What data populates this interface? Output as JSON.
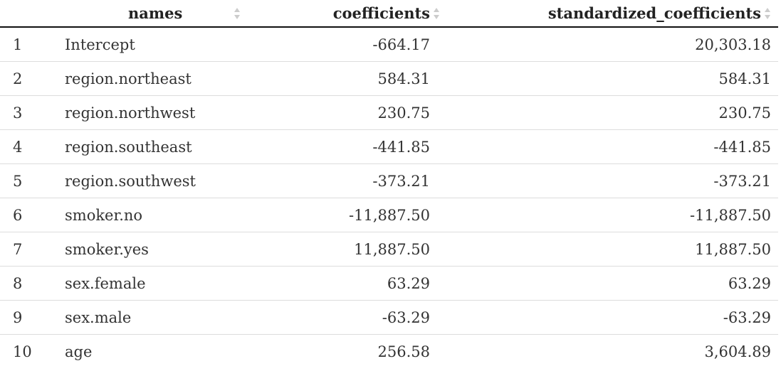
{
  "table": {
    "columns": [
      {
        "key": "index",
        "label": ""
      },
      {
        "key": "names",
        "label": "names"
      },
      {
        "key": "coefficients",
        "label": "coefficients"
      },
      {
        "key": "standardized_coefficients",
        "label": "standardized_coefficients"
      }
    ],
    "rows": [
      {
        "index": "1",
        "names": "Intercept",
        "coefficients": "-664.17",
        "standardized_coefficients": "20,303.18"
      },
      {
        "index": "2",
        "names": "region.northeast",
        "coefficients": "584.31",
        "standardized_coefficients": "584.31"
      },
      {
        "index": "3",
        "names": "region.northwest",
        "coefficients": "230.75",
        "standardized_coefficients": "230.75"
      },
      {
        "index": "4",
        "names": "region.southeast",
        "coefficients": "-441.85",
        "standardized_coefficients": "-441.85"
      },
      {
        "index": "5",
        "names": "region.southwest",
        "coefficients": "-373.21",
        "standardized_coefficients": "-373.21"
      },
      {
        "index": "6",
        "names": "smoker.no",
        "coefficients": "-11,887.50",
        "standardized_coefficients": "-11,887.50"
      },
      {
        "index": "7",
        "names": "smoker.yes",
        "coefficients": "11,887.50",
        "standardized_coefficients": "11,887.50"
      },
      {
        "index": "8",
        "names": "sex.female",
        "coefficients": "63.29",
        "standardized_coefficients": "63.29"
      },
      {
        "index": "9",
        "names": "sex.male",
        "coefficients": "-63.29",
        "standardized_coefficients": "-63.29"
      },
      {
        "index": "10",
        "names": "age",
        "coefficients": "256.58",
        "standardized_coefficients": "3,604.89"
      }
    ]
  },
  "icons": {
    "sort": "sort-icon"
  },
  "colors": {
    "header_rule": "#111111",
    "row_rule": "#dddddd",
    "sort_arrow": "#cccccc",
    "text": "#333333"
  }
}
